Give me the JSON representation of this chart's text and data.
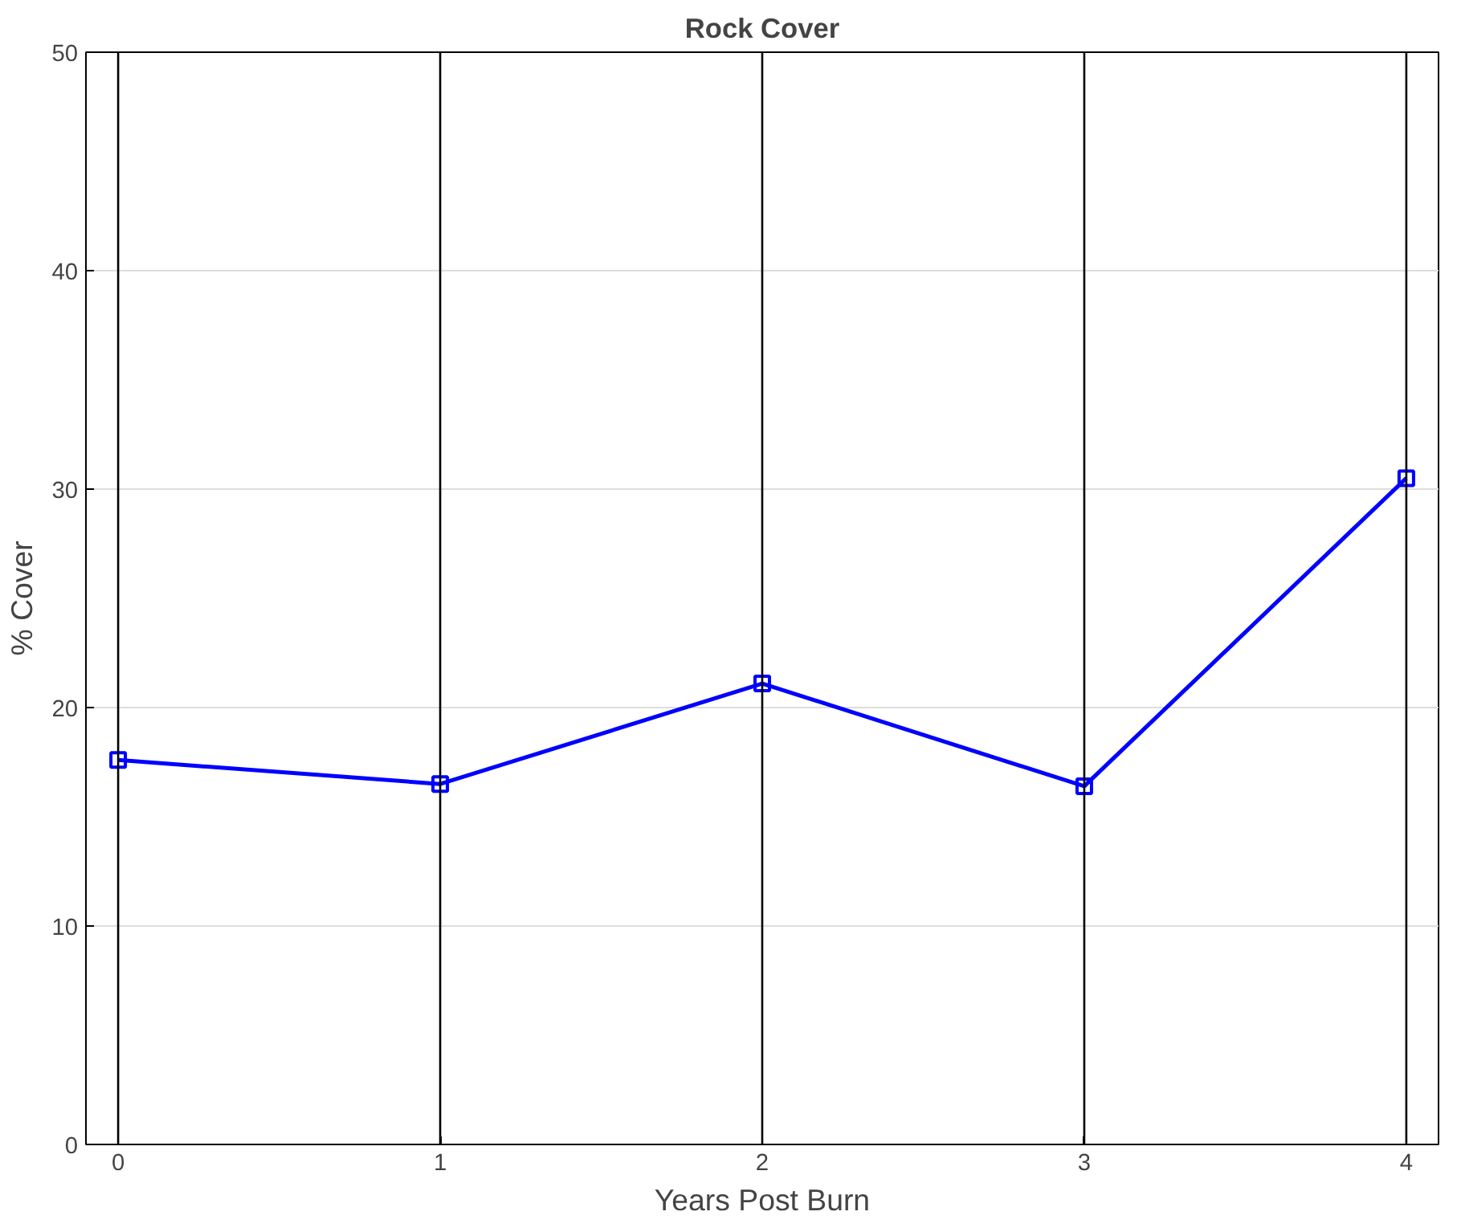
{
  "chart_data": {
    "type": "line",
    "title": "Rock Cover",
    "xlabel": "Years Post Burn",
    "ylabel": "% Cover",
    "x": [
      0,
      1,
      2,
      3,
      4
    ],
    "series": [
      {
        "color": "#0000ff",
        "values": [
          17.6,
          16.5,
          21.1,
          16.4,
          30.5
        ]
      }
    ],
    "xlim": [
      -0.1,
      4.1
    ],
    "xticks": [
      0,
      1,
      2,
      3,
      4
    ],
    "ylim": [
      0,
      50
    ],
    "yticks": [
      0,
      10,
      20,
      30,
      40,
      50
    ],
    "grid": "y",
    "marker": "square",
    "line_style": "solid",
    "ref_lines": [
      {
        "axis": "x",
        "value": 0,
        "color": "#000000"
      },
      {
        "axis": "x",
        "value": 1,
        "color": "#000000"
      },
      {
        "axis": "x",
        "value": 2,
        "color": "#000000"
      },
      {
        "axis": "x",
        "value": 3,
        "color": "#000000"
      },
      {
        "axis": "x",
        "value": 4,
        "color": "#000000"
      }
    ]
  }
}
